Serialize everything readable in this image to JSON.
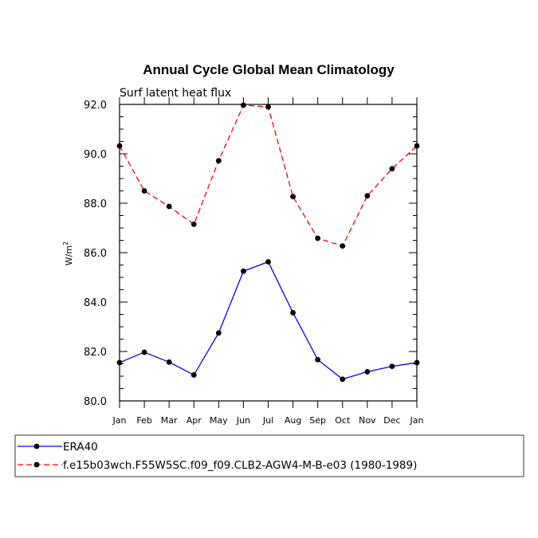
{
  "chart_data": {
    "type": "line",
    "title": "Annual Cycle Global Mean Climatology",
    "subtitle": "Surf latent heat flux",
    "ylabel_base": "W/m",
    "ylabel_sup": "2",
    "xlabel": "",
    "categories": [
      "Jan",
      "Feb",
      "Mar",
      "Apr",
      "May",
      "Jun",
      "Jul",
      "Aug",
      "Sep",
      "Oct",
      "Nov",
      "Dec",
      "Jan"
    ],
    "ylim": [
      80.0,
      92.0
    ],
    "yticks": [
      "80.0",
      "82.0",
      "84.0",
      "86.0",
      "88.0",
      "90.0",
      "92.0"
    ],
    "grid": false,
    "legend_position": "bottom",
    "series": [
      {
        "name": "ERA40",
        "color": "#0000ff",
        "dash": "solid",
        "values": [
          81.55,
          81.97,
          81.57,
          81.05,
          82.75,
          85.25,
          85.63,
          83.57,
          81.67,
          80.88,
          81.18,
          81.4,
          81.55
        ]
      },
      {
        "name": "f.e15b03wch.F55W5SC.f09_f09.CLB2-AGW4-M-B-e03 (1980-1989)",
        "color": "#ff0000",
        "dash": "dashed",
        "values": [
          90.32,
          88.5,
          87.87,
          87.15,
          89.72,
          91.97,
          91.9,
          88.27,
          86.58,
          86.27,
          88.3,
          89.4,
          90.32
        ]
      }
    ]
  }
}
